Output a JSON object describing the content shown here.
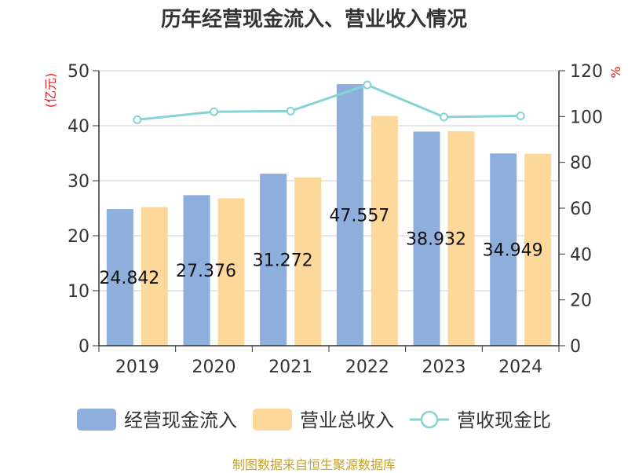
{
  "chart_data": {
    "type": "bar",
    "title": "历年经营现金流入、营业收入情况",
    "categories": [
      "2019",
      "2020",
      "2021",
      "2022",
      "2023",
      "2024"
    ],
    "series": [
      {
        "name": "经营现金流入",
        "kind": "bar",
        "axis": "left",
        "color": "#8eaedb",
        "values": [
          24.842,
          27.376,
          31.272,
          47.557,
          38.932,
          34.949
        ]
      },
      {
        "name": "营业总收入",
        "kind": "bar",
        "axis": "left",
        "color": "#fdd89b",
        "values": [
          25.2,
          26.8,
          30.6,
          41.8,
          39.0,
          34.9
        ]
      },
      {
        "name": "营收现金比",
        "kind": "line",
        "axis": "right",
        "color": "#86d3d6",
        "values": [
          98.6,
          102.1,
          102.4,
          113.8,
          99.8,
          100.3
        ]
      }
    ],
    "data_labels": [
      "24.842",
      "27.376",
      "31.272",
      "47.557",
      "38.932",
      "34.949"
    ],
    "yleft": {
      "label": "(亿元)",
      "lim": [
        0,
        50
      ],
      "ticks": [
        "0",
        "10",
        "20",
        "30",
        "40",
        "50"
      ]
    },
    "yright": {
      "label": "%",
      "lim": [
        0,
        120
      ],
      "ticks": [
        "0",
        "20",
        "40",
        "60",
        "80",
        "100",
        "120"
      ]
    },
    "grid": true,
    "legend_position": "bottom"
  },
  "source_note": "制图数据来自恒生聚源数据库"
}
